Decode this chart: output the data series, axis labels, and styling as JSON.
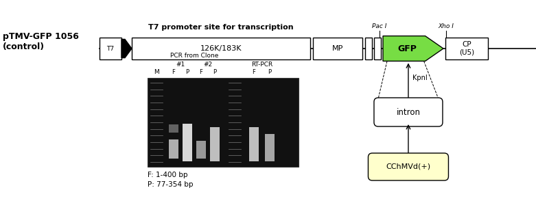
{
  "title_label": "pTMV-GFP 1056\n(control)",
  "t7_label": "T7",
  "promoter_label": "T7 promoter site for transcription",
  "box1_label": "126K/183K",
  "box2_label": "MP",
  "gfp_label": "GFP",
  "cp_label": "CP\n(U5)",
  "pac1_label": "Pac I",
  "xho1_label": "Xho I",
  "kpn1_label": "KpnI",
  "intron_label": "intron",
  "cchmvd_label": "CChMVd(+)",
  "pcr_label": "PCR from Clone",
  "rtpcr_label": "RT-PCR",
  "clone1_label": "#1",
  "clone2_label": "#2",
  "m_label": "M",
  "fp_note": "F: 1-400 bp\nP: 77-354 bp",
  "bg_color": "#ffffff",
  "gfp_color": "#77dd44",
  "cchmvd_fill": "#ffffcc",
  "fig_width": 7.81,
  "fig_height": 3.16
}
